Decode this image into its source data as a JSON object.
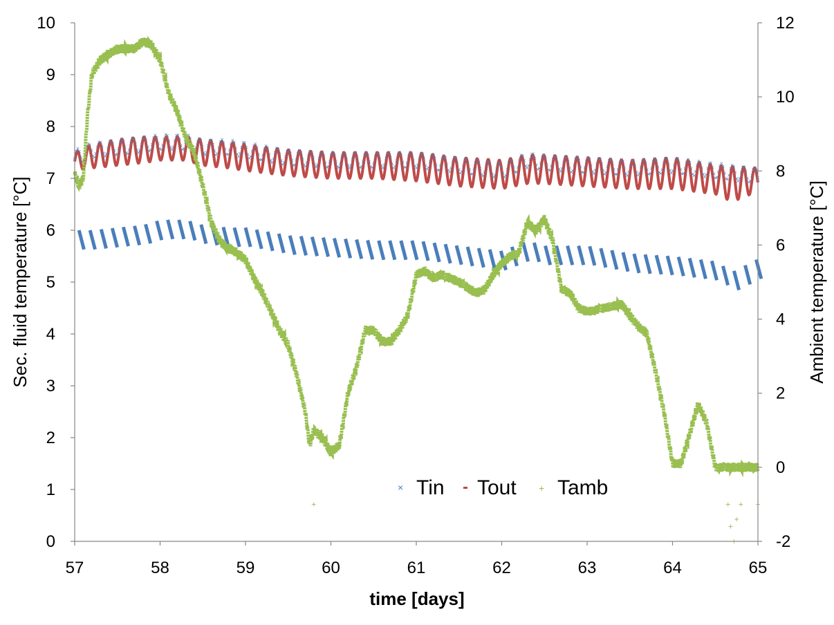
{
  "chart_data": {
    "type": "scatter",
    "xlabel": "time [days]",
    "ylabel_left": "Sec. fluid temperature [°C]",
    "ylabel_right": "Ambient  temperature [°C]",
    "xlim": [
      57,
      65
    ],
    "ylim_left": [
      0,
      10
    ],
    "ylim_right": [
      -2,
      12
    ],
    "x_ticks": [
      "57",
      "58",
      "59",
      "60",
      "61",
      "62",
      "63",
      "64",
      "65"
    ],
    "y_left_ticks": [
      "0",
      "1",
      "2",
      "3",
      "4",
      "5",
      "6",
      "7",
      "8",
      "9",
      "10"
    ],
    "y_right_ticks": [
      "-2",
      "0",
      "2",
      "4",
      "6",
      "8",
      "10",
      "12"
    ],
    "grid": false,
    "legend_position": "bottom-center",
    "colors": {
      "Tin": "#4a7ebb",
      "Tout": "#be4b48",
      "Tamb": "#98bf4f"
    },
    "series": [
      {
        "name": "Tin",
        "axis": "left",
        "marker": "x",
        "note_values": "secondary fluid inlet temperature, sawtooth between lower and upper band",
        "upper_band": {
          "x": [
            57.0,
            57.2,
            57.5,
            57.8,
            58.0,
            58.3,
            58.5,
            58.8,
            59.0,
            59.5,
            60.0,
            60.5,
            61.0,
            61.5,
            62.0,
            62.3,
            62.5,
            63.0,
            63.5,
            64.0,
            64.5,
            65.0
          ],
          "y": [
            7.55,
            7.7,
            7.75,
            7.8,
            7.85,
            7.85,
            7.75,
            7.75,
            7.7,
            7.55,
            7.5,
            7.5,
            7.5,
            7.4,
            7.3,
            7.5,
            7.45,
            7.4,
            7.35,
            7.4,
            7.3,
            7.2
          ]
        },
        "lower_band": {
          "x": [
            57.0,
            57.2,
            57.5,
            57.8,
            58.0,
            58.3,
            58.5,
            58.8,
            59.0,
            59.5,
            60.0,
            60.5,
            61.0,
            61.5,
            62.0,
            62.3,
            62.5,
            63.0,
            63.5,
            64.0,
            64.5,
            64.7,
            65.0
          ],
          "y": [
            5.65,
            5.65,
            5.7,
            5.75,
            5.85,
            5.85,
            5.75,
            5.7,
            5.7,
            5.55,
            5.5,
            5.45,
            5.45,
            5.35,
            5.25,
            5.45,
            5.35,
            5.35,
            5.2,
            5.15,
            5.05,
            4.85,
            5.1
          ]
        },
        "cycle_length_days": 0.13
      },
      {
        "name": "Tout",
        "axis": "left",
        "marker": "-",
        "note_values": "secondary fluid outlet temperature, oscillating band",
        "upper_band": {
          "x": [
            57.0,
            57.2,
            57.5,
            57.8,
            58.0,
            58.3,
            58.5,
            58.8,
            59.0,
            59.5,
            60.0,
            60.5,
            61.0,
            61.5,
            62.0,
            62.3,
            62.5,
            63.0,
            63.5,
            64.0,
            64.5,
            65.0
          ],
          "y": [
            7.5,
            7.65,
            7.75,
            7.8,
            7.8,
            7.8,
            7.75,
            7.7,
            7.65,
            7.55,
            7.5,
            7.5,
            7.5,
            7.4,
            7.35,
            7.45,
            7.45,
            7.4,
            7.35,
            7.4,
            7.25,
            7.2
          ]
        },
        "lower_band": {
          "x": [
            57.0,
            57.2,
            57.5,
            57.8,
            58.0,
            58.3,
            58.5,
            58.8,
            59.0,
            59.5,
            60.0,
            60.5,
            61.0,
            61.5,
            62.0,
            62.3,
            62.5,
            63.0,
            63.5,
            64.0,
            64.5,
            64.7,
            65.0
          ],
          "y": [
            7.15,
            7.2,
            7.25,
            7.3,
            7.35,
            7.35,
            7.25,
            7.2,
            7.15,
            7.05,
            7.0,
            7.0,
            6.95,
            6.85,
            6.8,
            6.9,
            6.9,
            6.85,
            6.8,
            6.8,
            6.7,
            6.55,
            6.75
          ]
        },
        "cycle_length_days": 0.13
      },
      {
        "name": "Tamb",
        "axis": "right",
        "marker": "+",
        "x": [
          57.0,
          57.05,
          57.1,
          57.15,
          57.2,
          57.3,
          57.5,
          57.7,
          57.8,
          57.9,
          58.0,
          58.1,
          58.2,
          58.3,
          58.4,
          58.5,
          58.6,
          58.7,
          58.8,
          58.9,
          59.0,
          59.1,
          59.2,
          59.3,
          59.4,
          59.5,
          59.6,
          59.7,
          59.75,
          59.8,
          59.9,
          60.0,
          60.1,
          60.2,
          60.3,
          60.4,
          60.5,
          60.6,
          60.7,
          60.8,
          60.9,
          61.0,
          61.1,
          61.2,
          61.3,
          61.5,
          61.7,
          61.8,
          61.9,
          62.0,
          62.1,
          62.2,
          62.3,
          62.4,
          62.5,
          62.6,
          62.7,
          62.8,
          62.9,
          63.0,
          63.2,
          63.4,
          63.5,
          63.6,
          63.7,
          63.8,
          63.9,
          64.0,
          64.1,
          64.2,
          64.3,
          64.4,
          64.5,
          64.6,
          64.7,
          65.0
        ],
        "y": [
          7.9,
          7.6,
          7.8,
          9.5,
          10.6,
          11.0,
          11.3,
          11.3,
          11.5,
          11.4,
          11.0,
          10.1,
          9.6,
          8.9,
          8.5,
          7.6,
          6.6,
          6.1,
          5.9,
          5.8,
          5.6,
          5.1,
          4.7,
          4.2,
          3.7,
          3.3,
          2.5,
          1.5,
          0.6,
          1.0,
          0.8,
          0.4,
          0.6,
          2.0,
          2.7,
          3.7,
          3.7,
          3.4,
          3.4,
          3.7,
          4.1,
          5.2,
          5.3,
          5.1,
          5.2,
          5.0,
          4.7,
          4.8,
          5.2,
          5.5,
          5.7,
          5.8,
          6.6,
          6.4,
          6.7,
          6.1,
          4.8,
          4.7,
          4.3,
          4.2,
          4.3,
          4.4,
          4.1,
          3.8,
          3.6,
          2.6,
          1.5,
          0.1,
          0.1,
          0.9,
          1.7,
          1.2,
          0.0,
          0.0,
          0.0,
          0.0
        ],
        "outliers": {
          "x": [
            59.8,
            64.65,
            64.68,
            64.72,
            64.75,
            64.8,
            65.0
          ],
          "y": [
            -1.0,
            -1.0,
            -1.6,
            -2.0,
            -1.4,
            -1.0,
            -1.0
          ]
        }
      }
    ]
  }
}
